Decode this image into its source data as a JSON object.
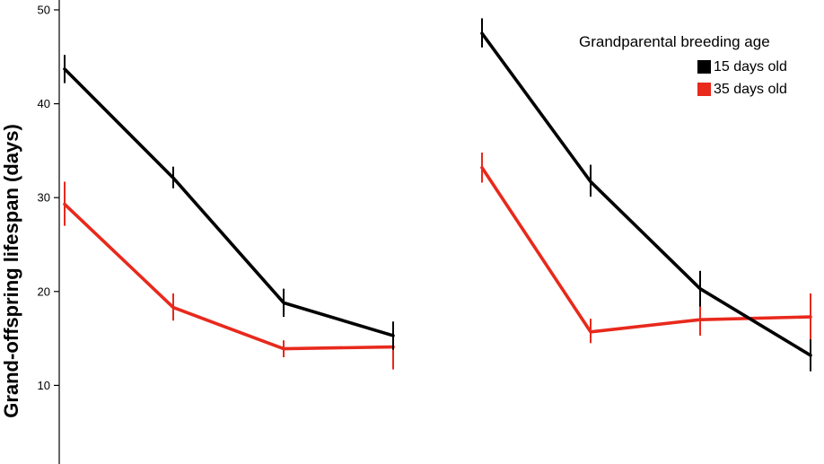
{
  "chart_data": {
    "type": "line",
    "ylabel": "Grand-offspring lifespan (days)",
    "ylim": [
      10,
      50
    ],
    "yticks": [
      10,
      20,
      30,
      40,
      50
    ],
    "legend": {
      "title": "Grandparental breeding age",
      "placement": "top-right"
    },
    "panels": [
      {
        "series": [
          {
            "name": "15 days old",
            "color": "#000000",
            "values": [
              43.7,
              32.1,
              18.8,
              15.3
            ],
            "err_low": [
              42.2,
              31.0,
              17.3,
              13.8
            ],
            "err_high": [
              45.2,
              33.3,
              20.3,
              16.8
            ]
          },
          {
            "name": "35 days old",
            "color": "#e8291c",
            "values": [
              29.3,
              18.3,
              13.9,
              14.1
            ],
            "err_low": [
              27.0,
              16.9,
              13.0,
              11.7
            ],
            "err_high": [
              31.7,
              19.8,
              14.8,
              16.4
            ]
          }
        ]
      },
      {
        "series": [
          {
            "name": "15 days old",
            "color": "#000000",
            "values": [
              47.5,
              31.7,
              20.3,
              13.2
            ],
            "err_low": [
              46.0,
              30.1,
              18.4,
              11.5
            ],
            "err_high": [
              49.1,
              33.5,
              22.2,
              14.9
            ]
          },
          {
            "name": "35 days old",
            "color": "#e8291c",
            "values": [
              33.2,
              15.7,
              17.0,
              17.3
            ],
            "err_low": [
              31.6,
              14.5,
              15.3,
              14.8
            ],
            "err_high": [
              34.8,
              17.1,
              18.6,
              19.8
            ]
          }
        ]
      }
    ]
  }
}
